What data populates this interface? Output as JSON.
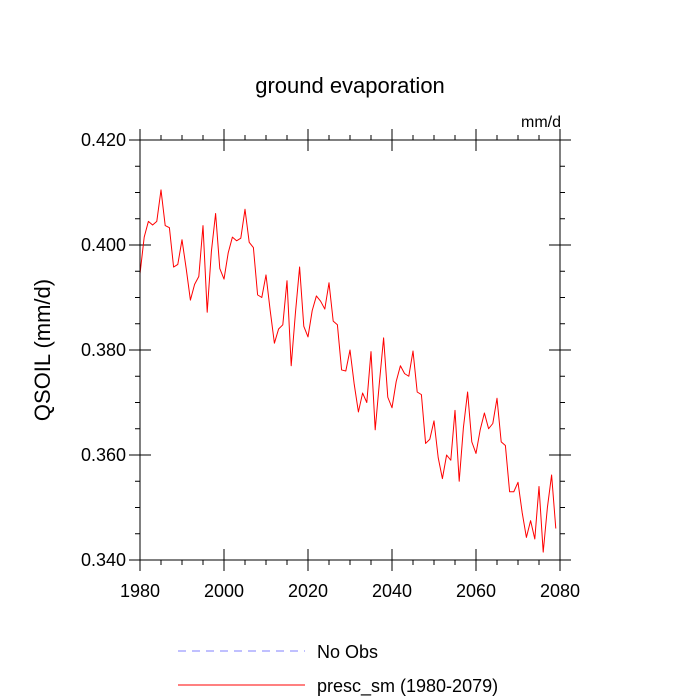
{
  "chart_data": {
    "type": "line",
    "title": "ground evaporation",
    "units_label": "mm/d",
    "ylabel": "QSOIL  (mm/d)",
    "xlabel": "",
    "xlim": [
      1980,
      2080
    ],
    "ylim": [
      0.34,
      0.42
    ],
    "x_ticks": [
      1980,
      2000,
      2020,
      2040,
      2060,
      2080
    ],
    "x_tick_labels": [
      "1980",
      "2000",
      "2020",
      "2040",
      "2060",
      "2080"
    ],
    "y_ticks": [
      0.34,
      0.36,
      0.38,
      0.4,
      0.42
    ],
    "y_tick_labels": [
      "0.340",
      "0.360",
      "0.380",
      "0.400",
      "0.420"
    ],
    "legend": [
      {
        "label": "No Obs",
        "color": "#8080ff",
        "dash": true
      },
      {
        "label": "presc_sm (1980-2079)",
        "color": "#ff0000",
        "dash": false
      }
    ],
    "series": [
      {
        "name": "presc_sm (1980-2079)",
        "color": "#ff0000",
        "x": [
          1980,
          1981,
          1982,
          1983,
          1984,
          1985,
          1986,
          1987,
          1988,
          1989,
          1990,
          1991,
          1992,
          1993,
          1994,
          1995,
          1996,
          1997,
          1998,
          1999,
          2000,
          2001,
          2002,
          2003,
          2004,
          2005,
          2006,
          2007,
          2008,
          2009,
          2010,
          2011,
          2012,
          2013,
          2014,
          2015,
          2016,
          2017,
          2018,
          2019,
          2020,
          2021,
          2022,
          2023,
          2024,
          2025,
          2026,
          2027,
          2028,
          2029,
          2030,
          2031,
          2032,
          2033,
          2034,
          2035,
          2036,
          2037,
          2038,
          2039,
          2040,
          2041,
          2042,
          2043,
          2044,
          2045,
          2046,
          2047,
          2048,
          2049,
          2050,
          2051,
          2052,
          2053,
          2054,
          2055,
          2056,
          2057,
          2058,
          2059,
          2060,
          2061,
          2062,
          2063,
          2064,
          2065,
          2066,
          2067,
          2068,
          2069,
          2070,
          2071,
          2072,
          2073,
          2074,
          2075,
          2076,
          2077,
          2078,
          2079
        ],
        "values": [
          0.3945,
          0.4015,
          0.4045,
          0.4038,
          0.4045,
          0.4105,
          0.4037,
          0.4033,
          0.3958,
          0.3963,
          0.401,
          0.3955,
          0.3895,
          0.3925,
          0.394,
          0.4037,
          0.3872,
          0.3988,
          0.406,
          0.3955,
          0.3935,
          0.3985,
          0.4015,
          0.4008,
          0.4013,
          0.4068,
          0.4005,
          0.3995,
          0.3905,
          0.39,
          0.3943,
          0.3875,
          0.3813,
          0.384,
          0.3848,
          0.3932,
          0.377,
          0.387,
          0.3958,
          0.3845,
          0.3825,
          0.3875,
          0.3903,
          0.3893,
          0.3878,
          0.3928,
          0.3855,
          0.3848,
          0.3762,
          0.376,
          0.38,
          0.3735,
          0.3682,
          0.3718,
          0.37,
          0.3797,
          0.3648,
          0.3738,
          0.3823,
          0.371,
          0.369,
          0.374,
          0.377,
          0.3755,
          0.375,
          0.3798,
          0.372,
          0.3715,
          0.3622,
          0.363,
          0.3665,
          0.3595,
          0.3555,
          0.36,
          0.359,
          0.3685,
          0.355,
          0.3652,
          0.372,
          0.3625,
          0.3603,
          0.3648,
          0.368,
          0.365,
          0.366,
          0.3708,
          0.3625,
          0.3618,
          0.353,
          0.353,
          0.3548,
          0.349,
          0.3443,
          0.3475,
          0.344,
          0.354,
          0.3415,
          0.35,
          0.3562,
          0.346
        ]
      }
    ]
  }
}
